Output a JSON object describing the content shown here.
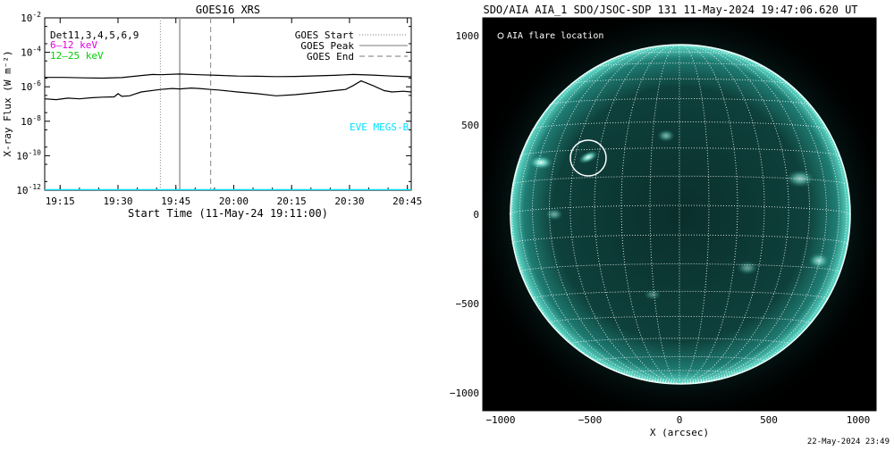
{
  "left_chart": {
    "title": "GOES16 XRS",
    "xlabel": "Start Time (11-May-24 19:11:00)",
    "ylabel": "X-ray Flux (W m⁻²)",
    "y_ticks": [
      {
        "exp": "-2",
        "value": 0.01
      },
      {
        "exp": "-4",
        "value": 0.0001
      },
      {
        "exp": "-6",
        "value": 1e-06
      },
      {
        "exp": "-8",
        "value": 1e-08
      },
      {
        "exp": "-10",
        "value": 1e-10
      },
      {
        "exp": "-12",
        "value": 1e-12
      }
    ],
    "x_ticks": [
      "19:15",
      "19:30",
      "19:45",
      "20:00",
      "20:15",
      "20:30",
      "20:45"
    ],
    "det_label": "Det11,3,4,5,6,9",
    "energy_labels": [
      {
        "text": "6–12 keV",
        "color": "#e000e0"
      },
      {
        "text": "12–25 keV",
        "color": "#00d000"
      }
    ],
    "legend": [
      {
        "label": "GOES Start",
        "style": "dotted"
      },
      {
        "label": "GOES Peak",
        "style": "solid"
      },
      {
        "label": "GOES End",
        "style": "dashed"
      }
    ],
    "eve_label": "EVE MEGS-B",
    "colors": {
      "goes": "#000000",
      "eve": "#00e0ff",
      "marker": "#999999"
    }
  },
  "chart_data": [
    {
      "type": "line",
      "title": "GOES16 XRS",
      "xlabel": "Start Time (11-May-24 19:11:00)",
      "ylabel": "X-ray Flux (W m⁻²)",
      "yscale": "log",
      "ylim": [
        1e-12,
        0.01
      ],
      "xlim_min": [
        0,
        95
      ],
      "xticks": [
        "19:15",
        "19:30",
        "19:45",
        "20:00",
        "20:15",
        "20:30",
        "20:45"
      ],
      "markers": {
        "goes_start": "19:41",
        "goes_peak": "19:46",
        "goes_end": "19:54"
      },
      "series": [
        {
          "name": "GOES long",
          "color": "#000000",
          "x": [
            0,
            5,
            10,
            15,
            20,
            25,
            28,
            30,
            35,
            40,
            45,
            50,
            55,
            60,
            65,
            70,
            75,
            80,
            85,
            90,
            95
          ],
          "y": [
            3.5e-06,
            3.5e-06,
            3.3e-06,
            3.2e-06,
            3.4e-06,
            4.5e-06,
            5.2e-06,
            5e-06,
            5.5e-06,
            5e-06,
            4.6e-06,
            4.2e-06,
            4.1e-06,
            3.9e-06,
            4e-06,
            4.3e-06,
            4.6e-06,
            5.2e-06,
            4.8e-06,
            4.2e-06,
            3.8e-06
          ]
        },
        {
          "name": "GOES short",
          "color": "#000000",
          "x": [
            0,
            3,
            6,
            9,
            12,
            15,
            18,
            19,
            20,
            22,
            25,
            30,
            33,
            35,
            38,
            40,
            43,
            45,
            50,
            55,
            60,
            65,
            70,
            75,
            78,
            80,
            82,
            85,
            88,
            90,
            93,
            95
          ],
          "y": [
            2e-07,
            1.8e-07,
            2.2e-07,
            2e-07,
            2.3e-07,
            2.5e-07,
            2.6e-07,
            4e-07,
            2.8e-07,
            3e-07,
            5e-07,
            7e-07,
            8e-07,
            7.5e-07,
            8.5e-07,
            8e-07,
            7e-07,
            6.5e-07,
            5e-07,
            4e-07,
            3e-07,
            3.5e-07,
            4.5e-07,
            6e-07,
            7e-07,
            1.2e-06,
            2.2e-06,
            1.2e-06,
            6e-07,
            5e-07,
            5.5e-07,
            5e-07
          ]
        },
        {
          "name": "EVE MEGS-B",
          "color": "#00e0ff",
          "x": [
            0,
            95
          ],
          "y": [
            1e-12,
            1e-12
          ]
        }
      ]
    },
    {
      "type": "image",
      "title": "SDO/AIA AIA_1 SDO/JSOC-SDP 131 11-May-2024 19:47:06.620 UT",
      "xlabel": "X (arcsec)",
      "ylabel": "",
      "xlim": [
        -1100,
        1100
      ],
      "ylim": [
        -1100,
        1100
      ],
      "xticks": [
        "−1000",
        "−500",
        "0",
        "500",
        "1000"
      ],
      "yticks": [
        "−1000",
        "−500",
        "0",
        "500",
        "1000"
      ],
      "solar_radius_arcsec": 950,
      "flare_location": {
        "x": -510,
        "y": 315
      },
      "legend": [
        {
          "label": "AIA flare location",
          "style": "circle"
        }
      ]
    }
  ],
  "right_image": {
    "title": "SDO/AIA AIA_1 SDO/JSOC-SDP 131 11-May-2024 19:47:06.620 UT",
    "xlabel": "X (arcsec)",
    "legend_label": "AIA flare location",
    "x_ticks": [
      {
        "label": "−1000",
        "value": -1000
      },
      {
        "label": "−500",
        "value": -500
      },
      {
        "label": "0",
        "value": 0
      },
      {
        "label": "500",
        "value": 500
      },
      {
        "label": "1000",
        "value": 1000
      }
    ],
    "y_ticks": [
      {
        "label": "1000",
        "value": 1000
      },
      {
        "label": "500",
        "value": 500
      },
      {
        "label": "0",
        "value": 0
      },
      {
        "label": "−500",
        "value": -500
      },
      {
        "label": "−1000",
        "value": -1000
      }
    ],
    "colors": {
      "disk": "#0b3a36",
      "corona": "#2fb8a8",
      "limb": "#dffcf5",
      "grid": "#ffffff",
      "background": "#000000"
    }
  },
  "footer": {
    "timestamp": "22-May-2024 23:49"
  }
}
